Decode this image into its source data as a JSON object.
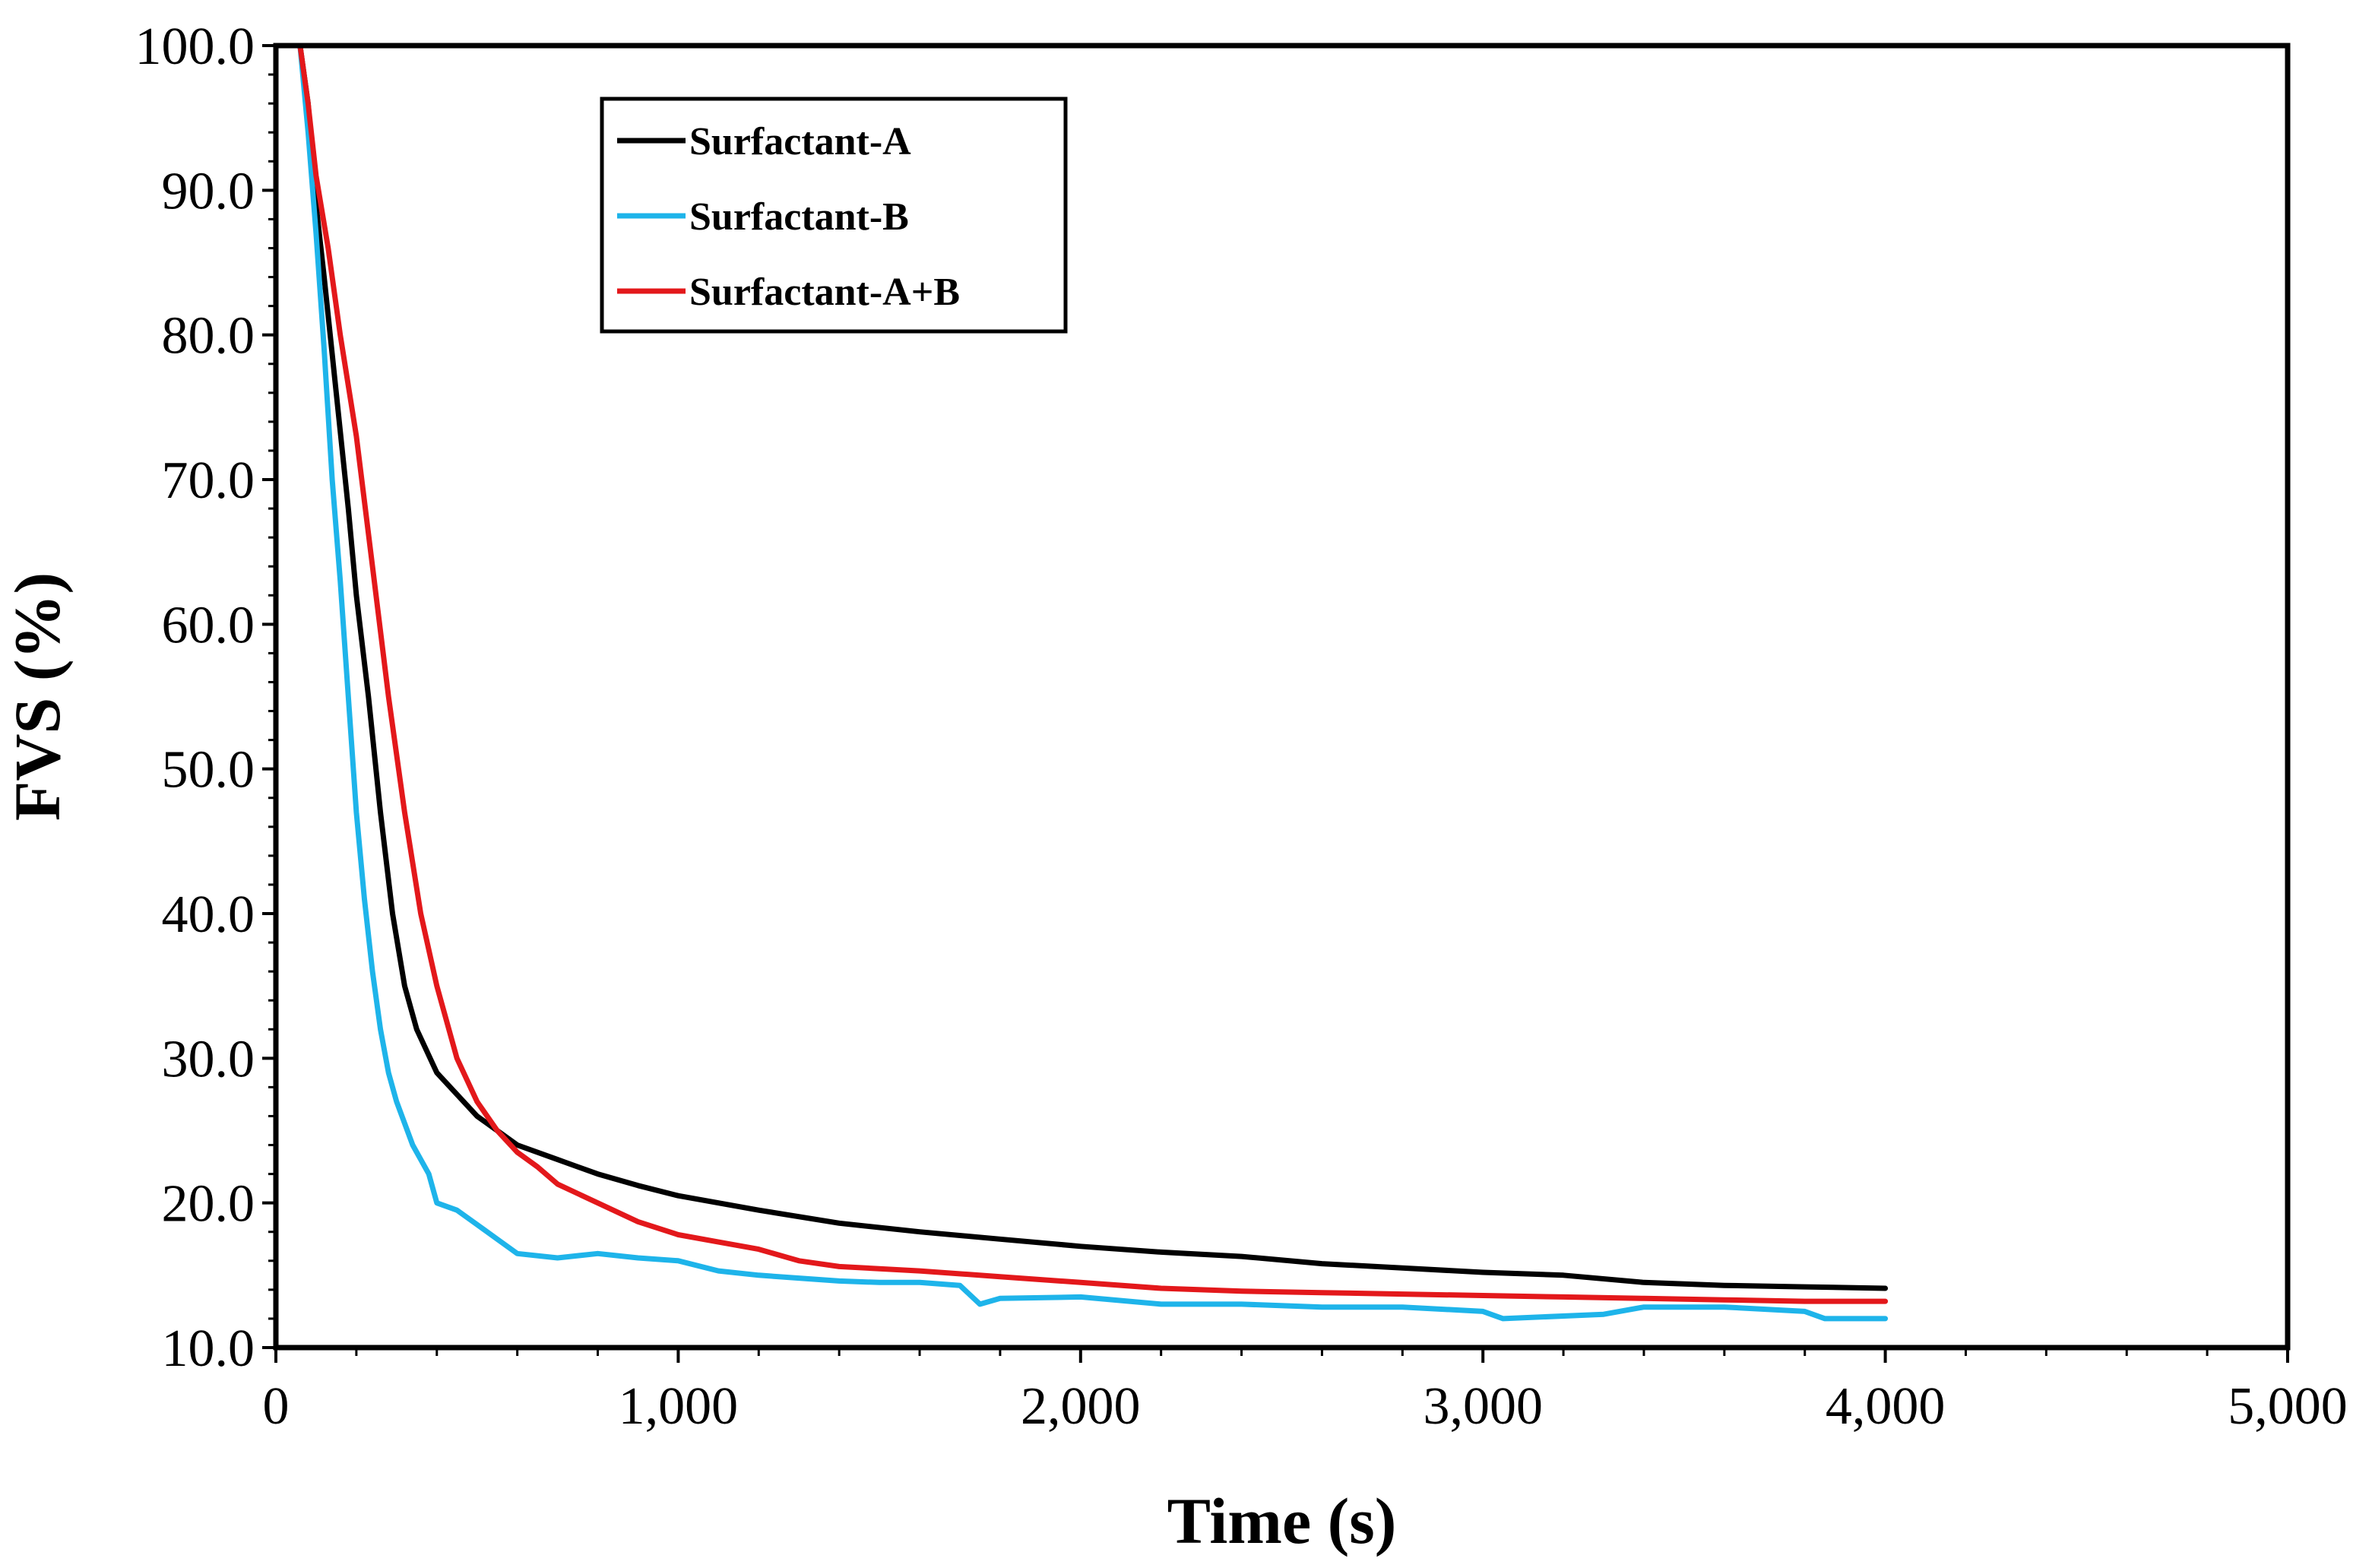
{
  "chart_data": {
    "type": "line",
    "title": "",
    "xlabel": "Time (s)",
    "ylabel": "FVS (%)",
    "xlim": [
      0,
      5000
    ],
    "ylim": [
      10,
      100
    ],
    "x_ticks": [
      0,
      1000,
      2000,
      3000,
      4000,
      5000
    ],
    "x_tick_labels": [
      "0",
      "1,000",
      "2,000",
      "3,000",
      "4,000",
      "5,000"
    ],
    "y_ticks": [
      10,
      20,
      30,
      40,
      50,
      60,
      70,
      80,
      90,
      100
    ],
    "y_tick_labels": [
      "10.0",
      "20.0",
      "30.0",
      "40.0",
      "50.0",
      "60.0",
      "70.0",
      "80.0",
      "90.0",
      "100.0"
    ],
    "grid": false,
    "legend_position": "top-left",
    "series": [
      {
        "name": "Surfactant-A",
        "color": "#000000",
        "points": [
          [
            60,
            100
          ],
          [
            80,
            96
          ],
          [
            100,
            89
          ],
          [
            120,
            84
          ],
          [
            150,
            76
          ],
          [
            180,
            68
          ],
          [
            200,
            62
          ],
          [
            230,
            55
          ],
          [
            260,
            47
          ],
          [
            290,
            40
          ],
          [
            320,
            35
          ],
          [
            350,
            32
          ],
          [
            400,
            29
          ],
          [
            450,
            27.5
          ],
          [
            500,
            26
          ],
          [
            550,
            25
          ],
          [
            600,
            24
          ],
          [
            700,
            23
          ],
          [
            800,
            22
          ],
          [
            900,
            21.2
          ],
          [
            1000,
            20.5
          ],
          [
            1200,
            19.5
          ],
          [
            1400,
            18.6
          ],
          [
            1600,
            18
          ],
          [
            1800,
            17.5
          ],
          [
            2000,
            17
          ],
          [
            2200,
            16.6
          ],
          [
            2400,
            16.3
          ],
          [
            2600,
            15.8
          ],
          [
            2800,
            15.5
          ],
          [
            3000,
            15.2
          ],
          [
            3200,
            15
          ],
          [
            3400,
            14.5
          ],
          [
            3600,
            14.3
          ],
          [
            3800,
            14.2
          ],
          [
            4000,
            14.1
          ]
        ]
      },
      {
        "name": "Surfactant-B",
        "color": "#1EB4EA",
        "points": [
          [
            60,
            100
          ],
          [
            80,
            94
          ],
          [
            100,
            87
          ],
          [
            120,
            79
          ],
          [
            140,
            70
          ],
          [
            160,
            63
          ],
          [
            180,
            55
          ],
          [
            200,
            47
          ],
          [
            220,
            41
          ],
          [
            240,
            36
          ],
          [
            260,
            32
          ],
          [
            280,
            29
          ],
          [
            300,
            27
          ],
          [
            340,
            24
          ],
          [
            380,
            22
          ],
          [
            400,
            20
          ],
          [
            450,
            19.5
          ],
          [
            500,
            18.5
          ],
          [
            550,
            17.5
          ],
          [
            600,
            16.5
          ],
          [
            700,
            16.2
          ],
          [
            800,
            16.5
          ],
          [
            900,
            16.2
          ],
          [
            1000,
            16
          ],
          [
            1100,
            15.3
          ],
          [
            1200,
            15
          ],
          [
            1300,
            14.8
          ],
          [
            1400,
            14.6
          ],
          [
            1500,
            14.5
          ],
          [
            1600,
            14.5
          ],
          [
            1700,
            14.3
          ],
          [
            1750,
            13
          ],
          [
            1800,
            13.4
          ],
          [
            2000,
            13.5
          ],
          [
            2200,
            13
          ],
          [
            2400,
            13
          ],
          [
            2600,
            12.8
          ],
          [
            2800,
            12.8
          ],
          [
            3000,
            12.5
          ],
          [
            3050,
            12
          ],
          [
            3300,
            12.3
          ],
          [
            3400,
            12.8
          ],
          [
            3600,
            12.8
          ],
          [
            3800,
            12.5
          ],
          [
            3850,
            12
          ],
          [
            4000,
            12
          ]
        ]
      },
      {
        "name": "Surfactant-A+B",
        "color": "#E3181B",
        "points": [
          [
            60,
            100
          ],
          [
            80,
            96
          ],
          [
            100,
            91
          ],
          [
            130,
            86
          ],
          [
            160,
            80
          ],
          [
            200,
            73
          ],
          [
            240,
            64
          ],
          [
            280,
            55
          ],
          [
            320,
            47
          ],
          [
            360,
            40
          ],
          [
            400,
            35
          ],
          [
            450,
            30
          ],
          [
            500,
            27
          ],
          [
            550,
            25
          ],
          [
            600,
            23.5
          ],
          [
            650,
            22.5
          ],
          [
            700,
            21.3
          ],
          [
            800,
            20
          ],
          [
            900,
            18.7
          ],
          [
            1000,
            17.8
          ],
          [
            1100,
            17.3
          ],
          [
            1200,
            16.8
          ],
          [
            1300,
            16
          ],
          [
            1400,
            15.6
          ],
          [
            1600,
            15.3
          ],
          [
            1800,
            14.9
          ],
          [
            2000,
            14.5
          ],
          [
            2200,
            14.1
          ],
          [
            2400,
            13.9
          ],
          [
            2600,
            13.8
          ],
          [
            2800,
            13.7
          ],
          [
            3000,
            13.6
          ],
          [
            3200,
            13.5
          ],
          [
            3400,
            13.4
          ],
          [
            3600,
            13.3
          ],
          [
            3800,
            13.2
          ],
          [
            4000,
            13.2
          ]
        ]
      }
    ]
  }
}
